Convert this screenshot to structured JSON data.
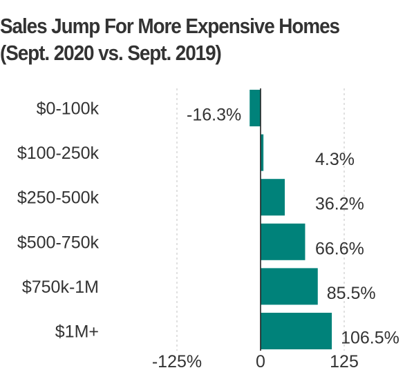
{
  "chart_data": {
    "type": "bar",
    "orientation": "horizontal",
    "title_lines": [
      "Sales Jump For More Expensive Homes",
      "(Sept. 2020 vs. Sept. 2019)"
    ],
    "categories": [
      "$0-100k",
      "$100-250k",
      "$250-500k",
      "$500-750k",
      "$750k-1M",
      "$1M+"
    ],
    "values": [
      -16.3,
      4.3,
      36.2,
      66.6,
      85.5,
      106.5
    ],
    "value_labels": [
      "-16.3%",
      "4.3%",
      "36.2%",
      "66.6%",
      "85.5%",
      "106.5%"
    ],
    "x_ticks": [
      {
        "value": -125,
        "label": "-125%"
      },
      {
        "value": 0,
        "label": "0"
      },
      {
        "value": 125,
        "label": "125"
      }
    ],
    "xlim": [
      -125,
      125
    ],
    "grid": "vertical dashed",
    "legend": "none",
    "colors": {
      "bar": "#00827a",
      "text": "#333333",
      "grid": "#cccccc",
      "zero_line": "#222222"
    }
  }
}
